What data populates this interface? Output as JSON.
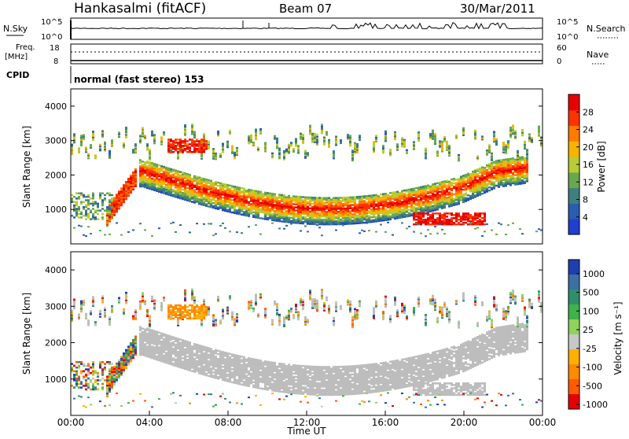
{
  "header": {
    "station": "Hankasalmi (fitACF)",
    "beam": "Beam 07",
    "date": "30/Mar/2011",
    "cpid_label": "CPID",
    "cpid_value": "normal (fast stereo) 153"
  },
  "top_panels": {
    "nsky_label": "N.Sky",
    "nsky_ticks": [
      "10^5",
      "10^0"
    ],
    "nsearch_label": "N.Search",
    "nsearch_ticks": [
      "10^5",
      "10^0"
    ],
    "freq_label_line1": "Freq.",
    "freq_label_line2": "[MHz]",
    "freq_ticks": [
      "18",
      "8"
    ],
    "nave_label": "Nave",
    "nave_ticks": [
      "60",
      "0"
    ]
  },
  "chart_data": [
    {
      "type": "heatmap",
      "name": "power",
      "ylabel": "Slant Range [km]",
      "ylim": [
        0,
        4500
      ],
      "yticks": [
        1000,
        2000,
        3000,
        4000
      ],
      "colorbar_label": "Power [dB]",
      "colorbar_ticks": [
        4,
        8,
        12,
        16,
        20,
        24,
        28
      ],
      "colorbar_range": [
        0,
        32
      ],
      "colors": [
        "#1f3fd0",
        "#2a5cb0",
        "#3f7f80",
        "#6aa84f",
        "#b8cc33",
        "#f5b400",
        "#ff7a00",
        "#ff3300",
        "#e60000"
      ]
    },
    {
      "type": "heatmap",
      "name": "velocity",
      "ylabel": "Slant Range [km]",
      "ylim": [
        0,
        4500
      ],
      "yticks": [
        1000,
        2000,
        3000,
        4000
      ],
      "colorbar_label": "Velocity [m s⁻¹]",
      "colorbar_ticks": [
        "1000",
        "500",
        "100",
        "25",
        "-25",
        "-100",
        "-500",
        "-1000"
      ],
      "ground_scatter_color": "#bdbdbd",
      "colors": [
        "#1f3fae",
        "#3d6fa3",
        "#2e8f6d",
        "#3fb24a",
        "#8fd35b",
        "#c8c8c8",
        "#ffb000",
        "#ff8a00",
        "#ff5a00",
        "#e60000"
      ]
    }
  ],
  "xaxis": {
    "ticks": [
      "00:00",
      "04:00",
      "08:00",
      "12:00",
      "16:00",
      "20:00",
      "00:00"
    ],
    "label": "Time UT"
  }
}
